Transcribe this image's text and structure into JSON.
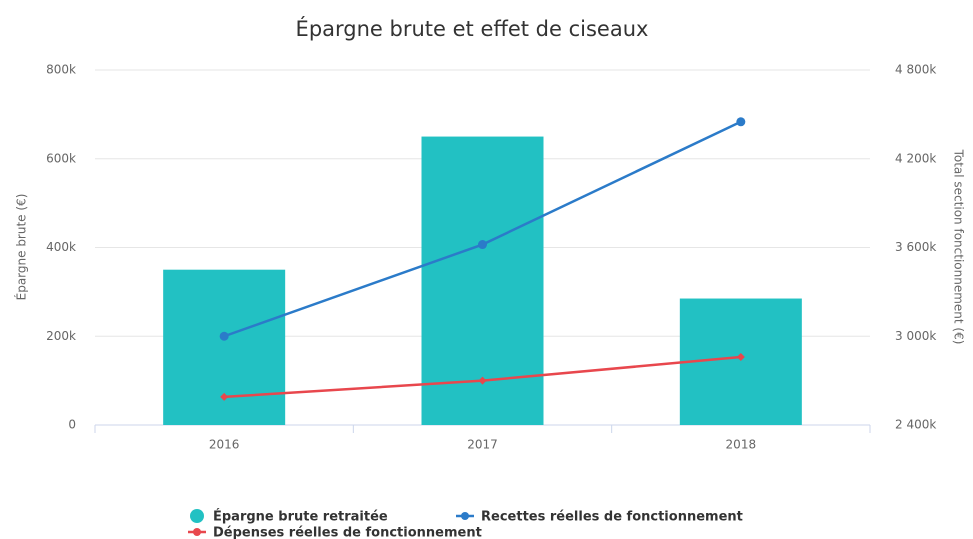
{
  "chart_data": {
    "type": "bar_line",
    "title": "Épargne brute et effet de ciseaux",
    "categories": [
      "2016",
      "2017",
      "2018"
    ],
    "ylabel": "Épargne brute (€)",
    "y2label": "Total section fonctionnement (€)",
    "ylim": [
      0,
      800000
    ],
    "yticks": [
      {
        "value": 0,
        "label": "0"
      },
      {
        "value": 200000,
        "label": "200k"
      },
      {
        "value": 400000,
        "label": "400k"
      },
      {
        "value": 600000,
        "label": "600k"
      },
      {
        "value": 800000,
        "label": "800k"
      }
    ],
    "y2lim": [
      2400000,
      4800000
    ],
    "y2ticks": [
      {
        "value": 2400000,
        "label": "2 400k"
      },
      {
        "value": 3000000,
        "label": "3 000k"
      },
      {
        "value": 3600000,
        "label": "3 600k"
      },
      {
        "value": 4200000,
        "label": "4 200k"
      },
      {
        "value": 4800000,
        "label": "4 800k"
      }
    ],
    "grid": true,
    "series": [
      {
        "name": "Épargne brute retraitée",
        "type": "bar",
        "color": "#22c1c3",
        "values": [
          350000,
          650000,
          285000
        ]
      },
      {
        "name": "Recettes réelles de fonctionnement",
        "type": "line",
        "axis": "y2",
        "color": "#2b7bc9",
        "values": [
          3000000,
          3620000,
          4450000
        ]
      },
      {
        "name": "Dépenses réelles de fonctionnement",
        "type": "line",
        "axis": "y2",
        "color": "#e8474d",
        "values": [
          2590000,
          2700000,
          2860000
        ]
      }
    ]
  }
}
